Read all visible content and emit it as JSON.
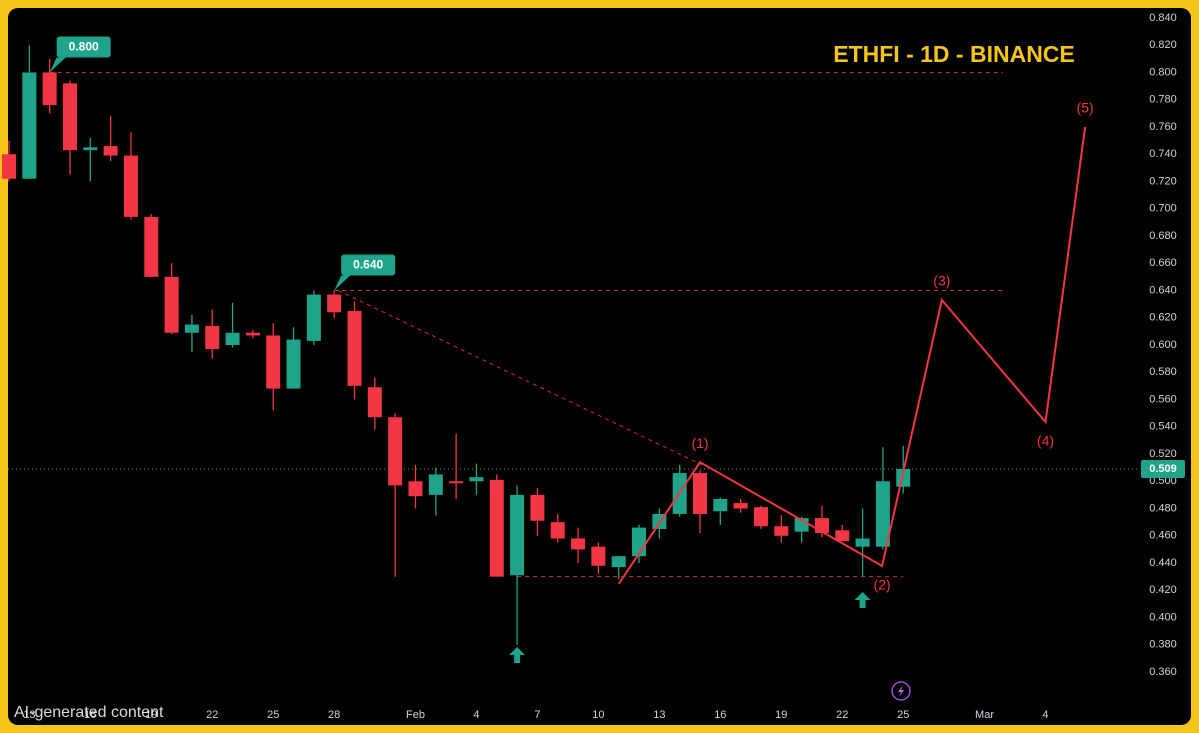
{
  "chart_data": {
    "type": "candlestick",
    "title": "ETHFI - 1D - BINANCE",
    "watermark": "AI-generated content",
    "up_color": "#1fa38a",
    "down_color": "#f23645",
    "accent_color": "#f5c518",
    "xlim": [
      -0.05,
      55.65
    ],
    "ylim": [
      0.3248,
      0.8473
    ],
    "xticks": [
      {
        "value": 1,
        "label": "13"
      },
      {
        "value": 4,
        "label": "16"
      },
      {
        "value": 7,
        "label": "19"
      },
      {
        "value": 10,
        "label": "22"
      },
      {
        "value": 13,
        "label": "25"
      },
      {
        "value": 16,
        "label": "28"
      },
      {
        "value": 20,
        "label": "Feb"
      },
      {
        "value": 23,
        "label": "4"
      },
      {
        "value": 26,
        "label": "7"
      },
      {
        "value": 29,
        "label": "10"
      },
      {
        "value": 32,
        "label": "13"
      },
      {
        "value": 35,
        "label": "16"
      },
      {
        "value": 38,
        "label": "19"
      },
      {
        "value": 41,
        "label": "22"
      },
      {
        "value": 44,
        "label": "25"
      },
      {
        "value": 48,
        "label": "Mar"
      },
      {
        "value": 51,
        "label": "4"
      }
    ],
    "yticks": [
      {
        "value": 0.36,
        "label": "0.360"
      },
      {
        "value": 0.38,
        "label": "0.380"
      },
      {
        "value": 0.4,
        "label": "0.400"
      },
      {
        "value": 0.42,
        "label": "0.420"
      },
      {
        "value": 0.44,
        "label": "0.440"
      },
      {
        "value": 0.46,
        "label": "0.460"
      },
      {
        "value": 0.48,
        "label": "0.480"
      },
      {
        "value": 0.5,
        "label": "0.500"
      },
      {
        "value": 0.52,
        "label": "0.520"
      },
      {
        "value": 0.54,
        "label": "0.540"
      },
      {
        "value": 0.56,
        "label": "0.560"
      },
      {
        "value": 0.58,
        "label": "0.580"
      },
      {
        "value": 0.6,
        "label": "0.600"
      },
      {
        "value": 0.62,
        "label": "0.620"
      },
      {
        "value": 0.64,
        "label": "0.640"
      },
      {
        "value": 0.66,
        "label": "0.660"
      },
      {
        "value": 0.68,
        "label": "0.680"
      },
      {
        "value": 0.7,
        "label": "0.700"
      },
      {
        "value": 0.72,
        "label": "0.720"
      },
      {
        "value": 0.74,
        "label": "0.740"
      },
      {
        "value": 0.76,
        "label": "0.760"
      },
      {
        "value": 0.78,
        "label": "0.780"
      },
      {
        "value": 0.8,
        "label": "0.800"
      },
      {
        "value": 0.82,
        "label": "0.820"
      },
      {
        "value": 0.84,
        "label": "0.840"
      }
    ],
    "candles": {
      "x": [
        0,
        1,
        2,
        3,
        4,
        5,
        6,
        7,
        8,
        9,
        10,
        11,
        12,
        13,
        14,
        15,
        16,
        17,
        18,
        19,
        20,
        21,
        22,
        23,
        24,
        25,
        26,
        27,
        28,
        29,
        30,
        31,
        32,
        33,
        34,
        35,
        36,
        37,
        38,
        39,
        40,
        41,
        42,
        43,
        44
      ],
      "open": [
        0.74,
        0.722,
        0.8,
        0.792,
        0.743,
        0.746,
        0.739,
        0.694,
        0.65,
        0.609,
        0.614,
        0.6,
        0.609,
        0.607,
        0.568,
        0.603,
        0.637,
        0.625,
        0.569,
        0.547,
        0.5,
        0.49,
        0.5,
        0.5,
        0.501,
        0.431,
        0.49,
        0.47,
        0.458,
        0.452,
        0.437,
        0.445,
        0.465,
        0.476,
        0.506,
        0.478,
        0.484,
        0.481,
        0.467,
        0.463,
        0.473,
        0.464,
        0.452,
        0.452,
        0.496
      ],
      "high": [
        0.75,
        0.82,
        0.81,
        0.794,
        0.752,
        0.768,
        0.756,
        0.696,
        0.66,
        0.622,
        0.626,
        0.631,
        0.611,
        0.616,
        0.613,
        0.64,
        0.64,
        0.632,
        0.576,
        0.55,
        0.512,
        0.51,
        0.535,
        0.513,
        0.505,
        0.497,
        0.495,
        0.476,
        0.466,
        0.455,
        0.445,
        0.468,
        0.48,
        0.512,
        0.508,
        0.488,
        0.487,
        0.482,
        0.475,
        0.474,
        0.482,
        0.468,
        0.48,
        0.525,
        0.526
      ],
      "low": [
        0.72,
        0.722,
        0.77,
        0.725,
        0.72,
        0.735,
        0.692,
        0.65,
        0.608,
        0.595,
        0.59,
        0.598,
        0.605,
        0.552,
        0.568,
        0.6,
        0.62,
        0.56,
        0.538,
        0.43,
        0.48,
        0.475,
        0.487,
        0.49,
        0.43,
        0.38,
        0.46,
        0.455,
        0.44,
        0.432,
        0.428,
        0.44,
        0.458,
        0.474,
        0.462,
        0.468,
        0.477,
        0.465,
        0.455,
        0.455,
        0.459,
        0.456,
        0.43,
        0.45,
        0.491
      ],
      "close": [
        0.722,
        0.8,
        0.776,
        0.743,
        0.745,
        0.739,
        0.694,
        0.65,
        0.609,
        0.615,
        0.597,
        0.609,
        0.607,
        0.568,
        0.604,
        0.637,
        0.624,
        0.57,
        0.547,
        0.497,
        0.489,
        0.505,
        0.499,
        0.503,
        0.43,
        0.49,
        0.471,
        0.458,
        0.45,
        0.438,
        0.445,
        0.466,
        0.476,
        0.506,
        0.476,
        0.487,
        0.48,
        0.467,
        0.46,
        0.473,
        0.462,
        0.456,
        0.458,
        0.5,
        0.509
      ]
    },
    "current_price": 0.509,
    "price_tags": [
      {
        "x": 2,
        "value": 0.8,
        "label": "0.800"
      },
      {
        "x": 16,
        "value": 0.64,
        "label": "0.640"
      }
    ],
    "levels": [
      {
        "value": 0.8,
        "from": 2,
        "to": 48.9
      },
      {
        "value": 0.64,
        "from": 16,
        "to": 48.9
      },
      {
        "value": 0.43,
        "from": 25,
        "to": 44
      }
    ],
    "trendline": {
      "x": [
        16.2,
        34.1
      ],
      "y": [
        0.64,
        0.512
      ]
    },
    "projection": {
      "x": [
        30,
        34,
        42.96,
        45.9,
        51,
        52.95
      ],
      "y": [
        0.4246,
        0.514,
        0.4378,
        0.633,
        0.5435,
        0.76
      ],
      "labels": [
        null,
        "(1)",
        "(2)",
        "(3)",
        "(4)",
        "(5)"
      ]
    },
    "signals": {
      "x": [
        25,
        42
      ],
      "y": [
        0.3725,
        0.4129
      ]
    }
  }
}
